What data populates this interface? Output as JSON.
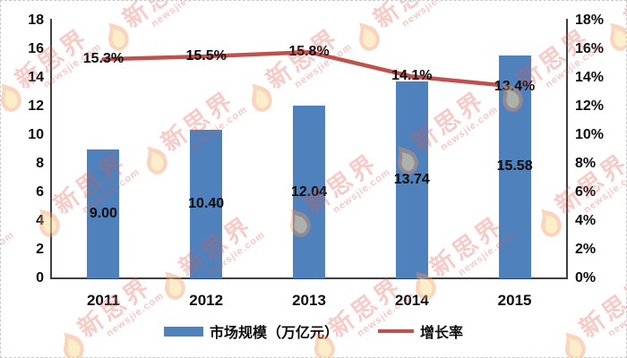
{
  "watermark": {
    "brand": "新思界",
    "site": "newsjie.com",
    "text_color": "#E2584E",
    "flame_outer_color": "#F2955C",
    "flame_inner_color": "#FBE3A3"
  },
  "chart_data": {
    "type": "bar+line",
    "categories": [
      "2011",
      "2012",
      "2013",
      "2014",
      "2015"
    ],
    "series": [
      {
        "name": "市场规模（万亿元）",
        "type": "bar",
        "axis": "left",
        "color": "#4F81BD",
        "values": [
          9.0,
          10.4,
          12.04,
          13.74,
          15.58
        ],
        "labels": [
          "9.00",
          "10.40",
          "12.04",
          "13.74",
          "15.58"
        ]
      },
      {
        "name": "增长率",
        "type": "line",
        "axis": "right",
        "color": "#C0504D",
        "values": [
          15.3,
          15.5,
          15.8,
          14.1,
          13.4
        ],
        "labels": [
          "15.3%",
          "15.5%",
          "15.8%",
          "14.1%",
          "13.4%"
        ]
      }
    ],
    "left_axis": {
      "min": 0,
      "max": 18,
      "ticks": [
        "0",
        "2",
        "4",
        "6",
        "8",
        "10",
        "12",
        "14",
        "16",
        "18"
      ]
    },
    "right_axis": {
      "min": 0,
      "max": 18,
      "ticks": [
        "0%",
        "2%",
        "4%",
        "6%",
        "8%",
        "10%",
        "12%",
        "14%",
        "16%",
        "18%"
      ]
    },
    "grid": false,
    "legend_position": "bottom",
    "legend": [
      {
        "label": "市场规模（万亿元）",
        "swatch": "bar"
      },
      {
        "label": "增长率",
        "swatch": "line"
      }
    ],
    "axis_color": "#404040",
    "label_color": "#0d0d0d"
  }
}
